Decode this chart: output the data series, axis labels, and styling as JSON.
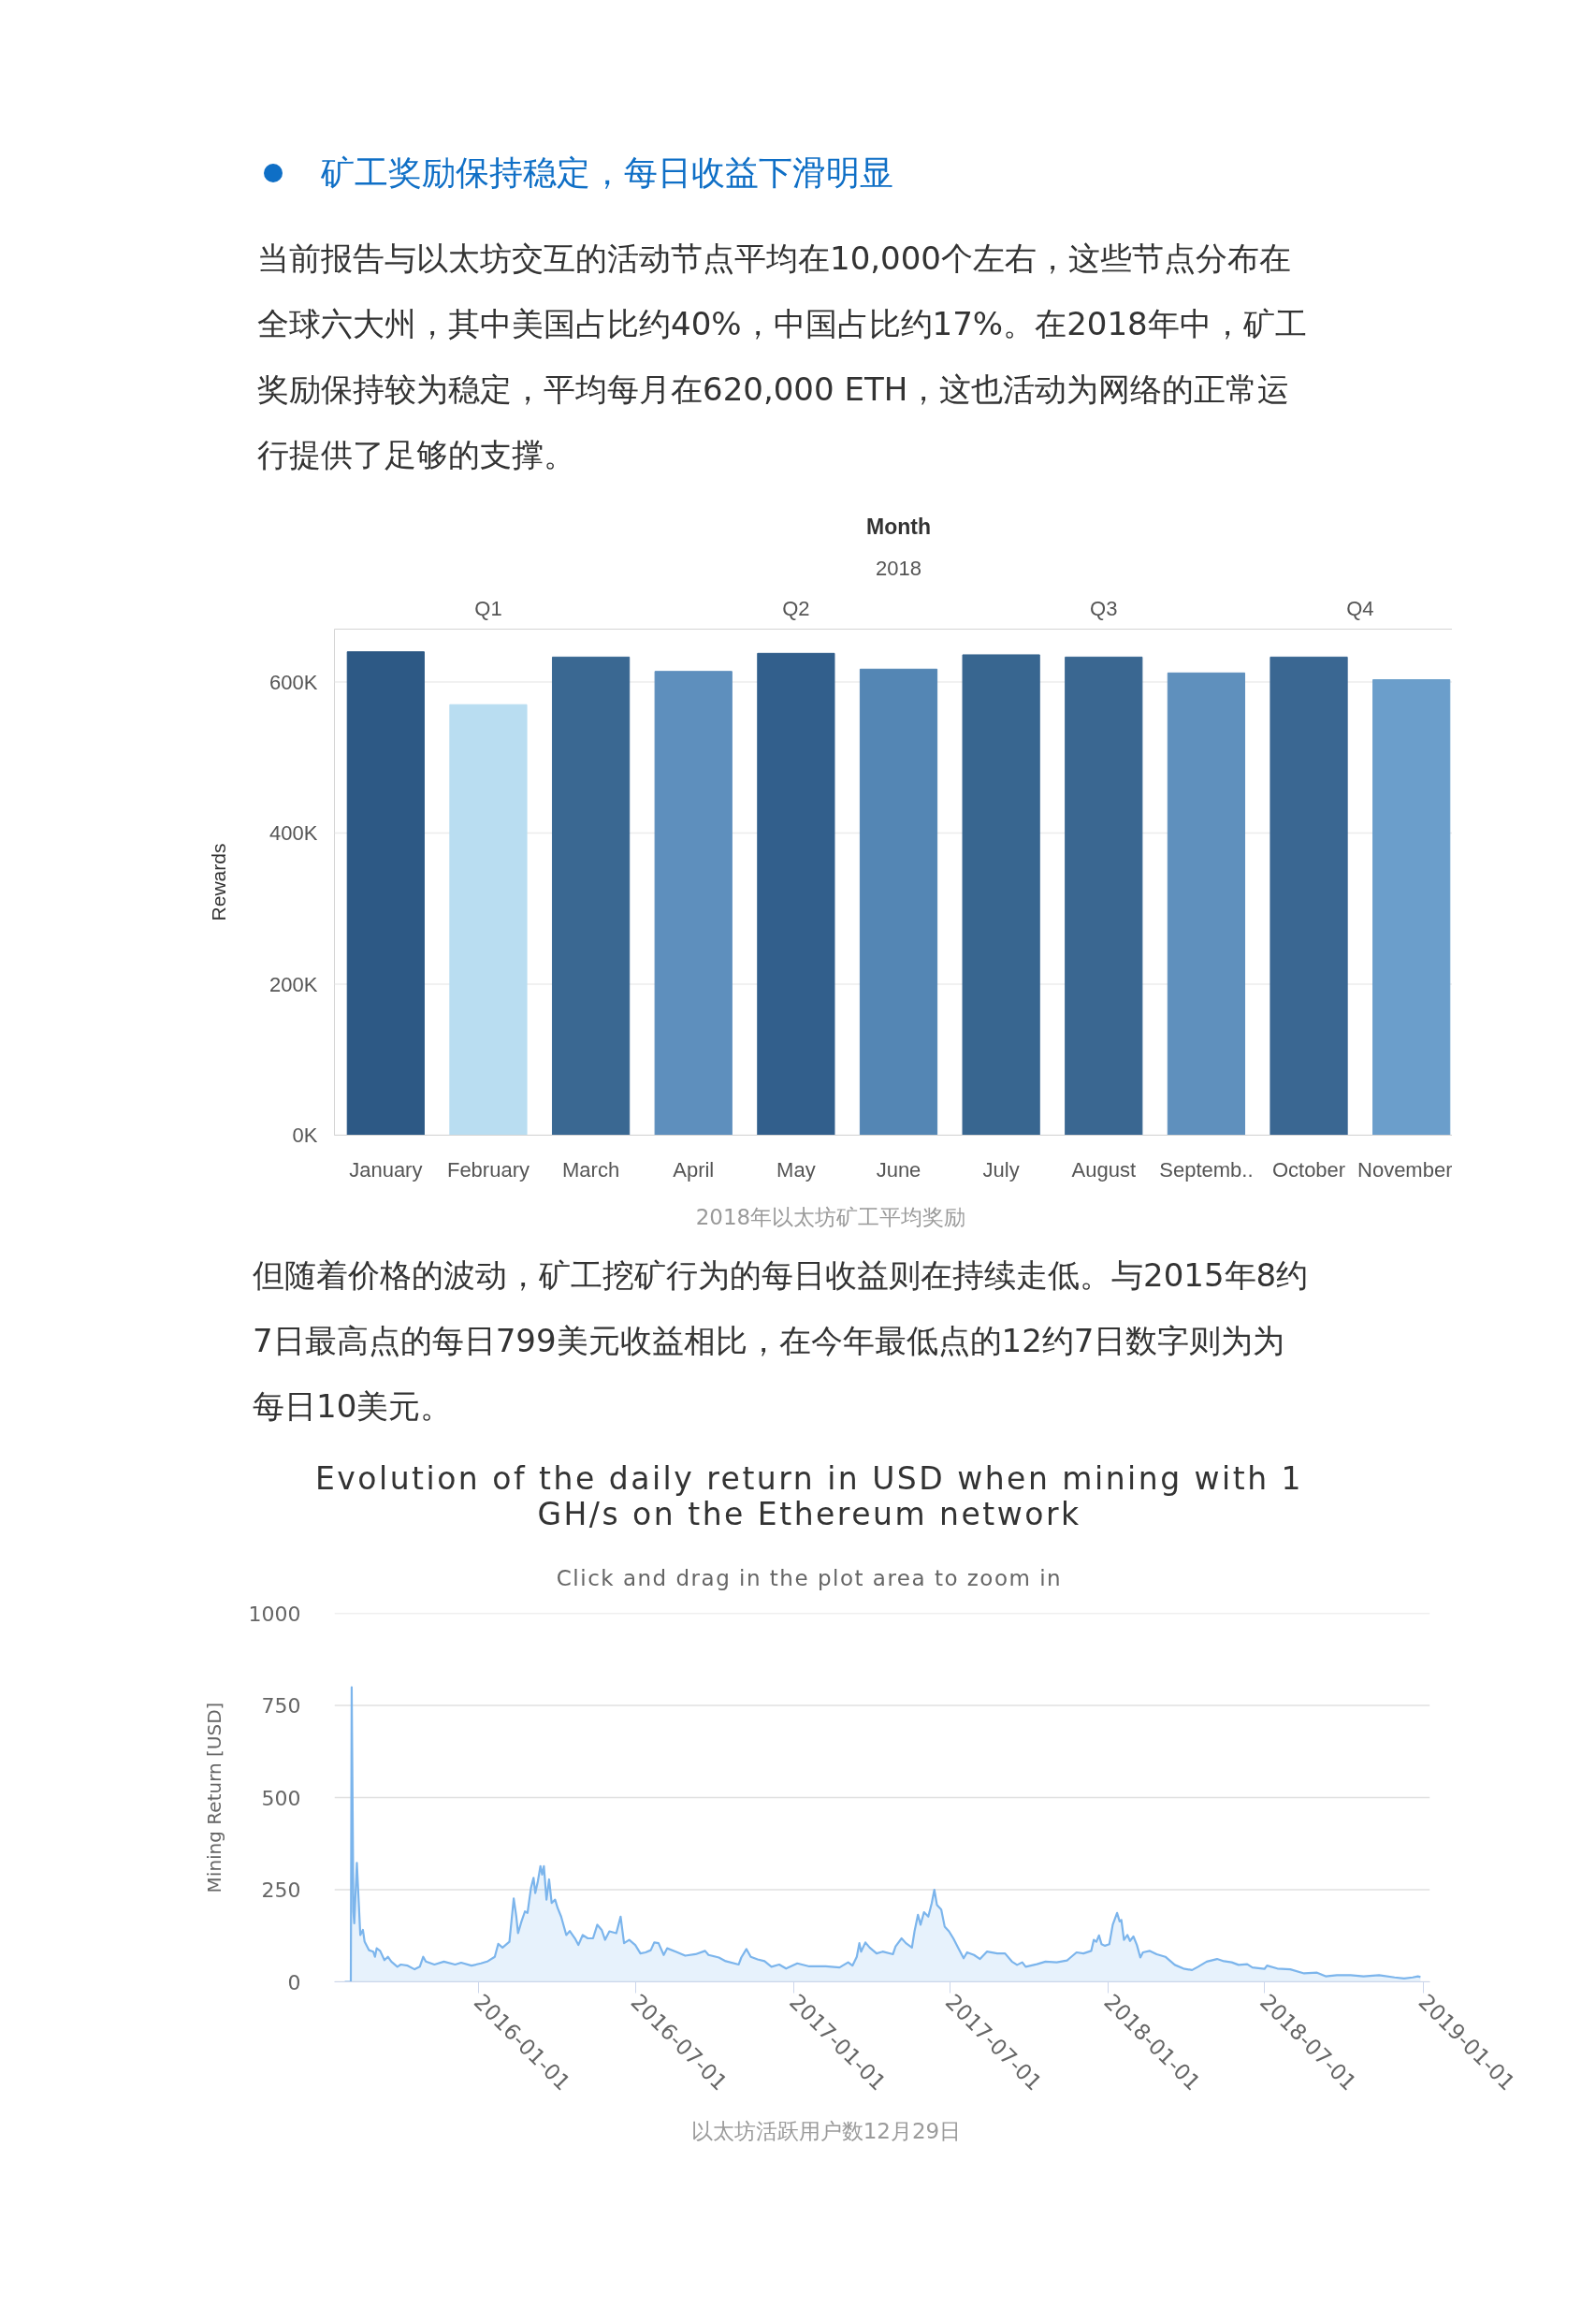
{
  "chart_data": [
    {
      "type": "bar",
      "title": "矿工奖励保持稳定，每日收益下滑明显",
      "annotations": [
        "当前报告与以太坊交互的活动节点平均在10,000个左右，这些节点分布在全球六大州，其中美国占比约40%，中国占比约17%。在2018年中，矿工奖励保持较为稳定，平均每月在620,000 ETH，这也活动为网络的正常运行提供了足够的支撑。",
        "2018",
        "Q1",
        "Q2",
        "Q3",
        "Q4",
        "2018年以太坊矿工平均奖励",
        "但随着价格的波动，矿工挖矿行为的每日收益则在持续走低。与2015年8约7日最高点的每日799美元收益相比，在今年最低点的12约7日数字则为为每日10美元。"
      ],
      "xlabel": "Month",
      "ylabel": "Rewards",
      "categories": [
        "January",
        "February",
        "March",
        "April",
        "May",
        "June",
        "July",
        "August",
        "Septemb..",
        "October",
        "November"
      ],
      "values": [
        640000,
        570000,
        633000,
        614000,
        638000,
        617000,
        636000,
        633000,
        612000,
        633000,
        603000
      ],
      "colors": [
        "#2d5985",
        "#b9ddf1",
        "#3a6892",
        "#5e8fbd",
        "#325f8c",
        "#5486b4",
        "#386690",
        "#3a6791",
        "#5f90bd",
        "#3a6792",
        "#6b9ecb"
      ],
      "ylim": [
        0,
        670000
      ],
      "yticks": [
        {
          "value": 0,
          "label": "0K"
        },
        {
          "value": 200000,
          "label": "200K"
        },
        {
          "value": 400000,
          "label": "400K"
        },
        {
          "value": 600000,
          "label": "600K"
        }
      ],
      "grid": "y"
    },
    {
      "type": "area",
      "title": "Evolution of the daily return in USD when mining with 1 GH/s on the Ethereum network",
      "subtitle": "Click and drag in the plot area to zoom in",
      "annotations": [
        "以太坊活跃用户数12月29日"
      ],
      "ylabel": "Mining Return [USD]",
      "color": "#7cb5ec",
      "x": [
        "2015-07-30",
        "2015-08-06",
        "2015-08-07",
        "2015-08-09",
        "2015-08-10",
        "2015-08-13",
        "2015-08-17",
        "2015-08-20",
        "2015-08-22",
        "2015-08-27",
        "2015-09-01",
        "2015-09-03",
        "2015-09-05",
        "2015-09-09",
        "2015-09-14",
        "2015-09-18",
        "2015-09-22",
        "2015-09-29",
        "2015-10-03",
        "2015-10-11",
        "2015-10-19",
        "2015-10-25",
        "2015-10-29",
        "2015-11-01",
        "2015-11-11",
        "2015-11-22",
        "2015-12-05",
        "2015-12-12",
        "2015-12-24",
        "2016-01-04",
        "2016-01-12",
        "2016-01-20",
        "2016-01-24",
        "2016-01-29",
        "2016-02-06",
        "2016-02-11",
        "2016-02-14",
        "2016-02-16",
        "2016-02-20",
        "2016-02-24",
        "2016-02-27",
        "2016-03-02",
        "2016-03-05",
        "2016-03-07",
        "2016-03-10",
        "2016-03-13",
        "2016-03-15",
        "2016-03-17",
        "2016-03-20",
        "2016-03-23",
        "2016-03-26",
        "2016-03-30",
        "2016-04-02",
        "2016-04-06",
        "2016-04-12",
        "2016-04-16",
        "2016-04-22",
        "2016-04-26",
        "2016-05-01",
        "2016-05-07",
        "2016-05-13",
        "2016-05-18",
        "2016-05-23",
        "2016-05-27",
        "2016-06-01",
        "2016-06-09",
        "2016-06-14",
        "2016-06-18",
        "2016-06-24",
        "2016-07-01",
        "2016-07-07",
        "2016-07-13",
        "2016-07-19",
        "2016-07-23",
        "2016-07-28",
        "2016-08-03",
        "2016-08-07",
        "2016-08-17",
        "2016-08-28",
        "2016-09-09",
        "2016-09-20",
        "2016-09-24",
        "2016-10-06",
        "2016-10-14",
        "2016-10-29",
        "2016-11-01",
        "2016-11-07",
        "2016-11-12",
        "2016-11-20",
        "2016-11-28",
        "2016-12-06",
        "2016-12-15",
        "2016-12-23",
        "2017-01-05",
        "2017-01-19",
        "2017-02-07",
        "2017-02-23",
        "2017-03-05",
        "2017-03-10",
        "2017-03-15",
        "2017-03-18",
        "2017-03-20",
        "2017-03-25",
        "2017-03-30",
        "2017-04-07",
        "2017-04-14",
        "2017-04-26",
        "2017-04-29",
        "2017-05-06",
        "2017-05-11",
        "2017-05-18",
        "2017-05-21",
        "2017-05-25",
        "2017-05-28",
        "2017-06-01",
        "2017-06-06",
        "2017-06-10",
        "2017-06-13",
        "2017-06-16",
        "2017-06-21",
        "2017-06-25",
        "2017-06-30",
        "2017-07-05",
        "2017-07-11",
        "2017-07-17",
        "2017-07-21",
        "2017-07-29",
        "2017-08-05",
        "2017-08-13",
        "2017-08-25",
        "2017-09-03",
        "2017-09-11",
        "2017-09-17",
        "2017-09-23",
        "2017-09-27",
        "2017-10-10",
        "2017-10-20",
        "2017-11-02",
        "2017-11-14",
        "2017-11-17",
        "2017-11-25",
        "2017-12-03",
        "2017-12-12",
        "2017-12-15",
        "2017-12-18",
        "2017-12-21",
        "2017-12-24",
        "2017-12-28",
        "2018-01-02",
        "2018-01-06",
        "2018-01-11",
        "2018-01-14",
        "2018-01-16",
        "2018-01-19",
        "2018-01-23",
        "2018-01-26",
        "2018-01-30",
        "2018-02-03",
        "2018-02-07",
        "2018-02-10",
        "2018-02-18",
        "2018-02-26",
        "2018-03-08",
        "2018-03-19",
        "2018-03-29",
        "2018-04-08",
        "2018-04-15",
        "2018-04-25",
        "2018-05-07",
        "2018-05-15",
        "2018-05-24",
        "2018-06-01",
        "2018-06-11",
        "2018-06-17",
        "2018-07-01",
        "2018-07-04",
        "2018-07-16",
        "2018-07-31",
        "2018-08-16",
        "2018-08-31",
        "2018-09-10",
        "2018-09-23",
        "2018-10-09",
        "2018-10-24",
        "2018-11-11",
        "2018-11-29",
        "2018-12-10",
        "2018-12-20",
        "2018-12-26",
        "2018-12-29"
      ],
      "values": [
        0,
        0,
        799,
        190,
        159,
        323,
        127,
        141,
        109,
        86,
        82,
        68,
        91,
        84,
        59,
        68,
        55,
        41,
        47,
        44,
        34,
        41,
        68,
        55,
        47,
        55,
        47,
        52,
        44,
        50,
        56,
        68,
        103,
        93,
        109,
        226,
        177,
        132,
        164,
        191,
        187,
        255,
        282,
        241,
        273,
        314,
        291,
        314,
        223,
        278,
        214,
        223,
        200,
        177,
        127,
        138,
        118,
        100,
        127,
        118,
        118,
        155,
        141,
        114,
        137,
        132,
        177,
        105,
        114,
        100,
        77,
        80,
        86,
        107,
        105,
        73,
        91,
        82,
        71,
        75,
        84,
        73,
        66,
        56,
        47,
        66,
        89,
        68,
        61,
        56,
        41,
        47,
        36,
        50,
        42,
        42,
        39,
        53,
        44,
        68,
        105,
        82,
        107,
        93,
        77,
        82,
        75,
        96,
        118,
        105,
        93,
        137,
        182,
        155,
        189,
        177,
        214,
        250,
        209,
        196,
        150,
        137,
        118,
        91,
        64,
        80,
        73,
        62,
        82,
        77,
        77,
        55,
        46,
        53,
        41,
        48,
        55,
        53,
        58,
        64,
        80,
        77,
        84,
        114,
        109,
        126,
        102,
        98,
        102,
        155,
        187,
        164,
        168,
        114,
        127,
        111,
        123,
        100,
        66,
        80,
        84,
        75,
        68,
        46,
        36,
        32,
        41,
        55,
        62,
        56,
        53,
        46,
        48,
        39,
        35,
        44,
        36,
        34,
        23,
        25,
        15,
        18,
        18,
        15,
        18,
        12,
        9,
        12,
        15,
        13
      ],
      "xlim": [
        "2015-07-18",
        "2019-01-09"
      ],
      "xticks": [
        "2016-01-01",
        "2016-07-01",
        "2017-01-01",
        "2017-07-01",
        "2018-01-01",
        "2018-07-01",
        "2019-01-01"
      ],
      "ylim": [
        0,
        1000
      ],
      "yticks": [
        0,
        250,
        500,
        750,
        1000
      ],
      "grid": "y"
    }
  ]
}
